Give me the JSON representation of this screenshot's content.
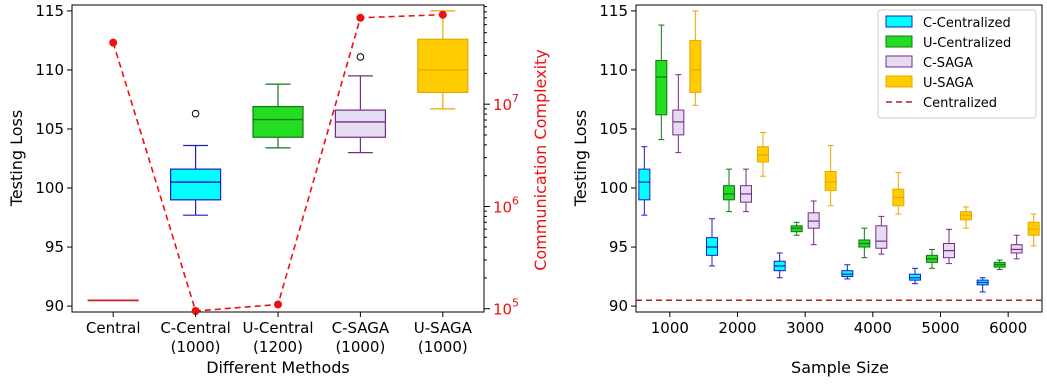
{
  "chart_data": [
    {
      "type": "box",
      "xlabel": "Different Methods",
      "ylabel": "Testing Loss",
      "y2label": "Communication Complexity",
      "ylim": [
        89.5,
        115.5
      ],
      "yticks": [
        90,
        95,
        100,
        105,
        110,
        115
      ],
      "y2scale": "log",
      "y2ticks": [
        {
          "value": 100000,
          "label": "10",
          "exp": "5"
        },
        {
          "value": 1000000,
          "label": "10",
          "exp": "6"
        },
        {
          "value": 10000000,
          "label": "10",
          "exp": "7"
        }
      ],
      "categories": [
        {
          "line1": "Central",
          "line2": ""
        },
        {
          "line1": "C-Central",
          "line2": "(1000)"
        },
        {
          "line1": "U-Central",
          "line2": "(1200)"
        },
        {
          "line1": "C-SAGA",
          "line2": "(1000)"
        },
        {
          "line1": "U-SAGA",
          "line2": "(1000)"
        }
      ],
      "boxes": [
        {
          "min": 90.5,
          "q1": 90.5,
          "median": 90.5,
          "q3": 90.5,
          "max": 90.5,
          "fliers": [],
          "color": "#ff9999",
          "edge": "#cc2222"
        },
        {
          "min": 97.7,
          "q1": 99.0,
          "median": 100.5,
          "q3": 101.6,
          "max": 103.6,
          "fliers": [
            106.3
          ],
          "color": "#00ffff",
          "edge": "#1c1cc8"
        },
        {
          "min": 103.4,
          "q1": 104.3,
          "median": 105.8,
          "q3": 106.9,
          "max": 108.8,
          "fliers": [],
          "color": "#22dd22",
          "edge": "#117711"
        },
        {
          "min": 103.0,
          "q1": 104.3,
          "median": 105.6,
          "q3": 106.6,
          "max": 109.5,
          "fliers": [
            111.1
          ],
          "color": "#e6dcf2",
          "edge": "#7a2a8a"
        },
        {
          "min": 106.7,
          "q1": 108.1,
          "median": 110.0,
          "q3": 112.6,
          "max": 115.0,
          "fliers": [],
          "color": "#ffcc00",
          "edge": "#e8a800"
        }
      ],
      "complexity_line": {
        "color": "#ee1111",
        "values": [
          40000000,
          95000,
          110000,
          70000000,
          75000000
        ]
      }
    },
    {
      "type": "box",
      "xlabel": "Sample Size",
      "ylabel": "Testing Loss",
      "ylim": [
        89.5,
        115.5
      ],
      "yticks": [
        90,
        95,
        100,
        105,
        110,
        115
      ],
      "categories": [
        "1000",
        "2000",
        "3000",
        "4000",
        "5000",
        "6000"
      ],
      "reference_line": {
        "name": "Centralized",
        "value": 90.5,
        "color": "#b22222"
      },
      "legend_position": "top-right",
      "series": [
        {
          "name": "C-Centralized",
          "color": "#00ffff",
          "edge": "#1c1cc8",
          "boxes": [
            {
              "min": 97.7,
              "q1": 99.0,
              "median": 100.5,
              "q3": 101.6,
              "max": 103.5
            },
            {
              "min": 93.4,
              "q1": 94.3,
              "median": 95.0,
              "q3": 95.8,
              "max": 97.4
            },
            {
              "min": 92.4,
              "q1": 93.0,
              "median": 93.4,
              "q3": 93.8,
              "max": 94.5
            },
            {
              "min": 92.3,
              "q1": 92.5,
              "median": 92.7,
              "q3": 93.0,
              "max": 93.5
            },
            {
              "min": 91.9,
              "q1": 92.2,
              "median": 92.4,
              "q3": 92.7,
              "max": 93.2
            },
            {
              "min": 91.2,
              "q1": 91.8,
              "median": 92.0,
              "q3": 92.2,
              "max": 92.4
            }
          ]
        },
        {
          "name": "U-Centralized",
          "color": "#22dd22",
          "edge": "#117711",
          "boxes": [
            {
              "min": 104.1,
              "q1": 106.2,
              "median": 109.4,
              "q3": 110.8,
              "max": 113.8
            },
            {
              "min": 98.0,
              "q1": 99.0,
              "median": 99.5,
              "q3": 100.2,
              "max": 101.6
            },
            {
              "min": 96.0,
              "q1": 96.3,
              "median": 96.6,
              "q3": 96.8,
              "max": 97.1
            },
            {
              "min": 94.1,
              "q1": 95.0,
              "median": 95.3,
              "q3": 95.6,
              "max": 96.6
            },
            {
              "min": 93.2,
              "q1": 93.7,
              "median": 94.0,
              "q3": 94.3,
              "max": 94.8
            },
            {
              "min": 93.1,
              "q1": 93.3,
              "median": 93.5,
              "q3": 93.7,
              "max": 93.9
            }
          ]
        },
        {
          "name": "C-SAGA",
          "color": "#e6dcf2",
          "edge": "#7a2a8a",
          "boxes": [
            {
              "min": 103.0,
              "q1": 104.5,
              "median": 105.6,
              "q3": 106.6,
              "max": 109.6
            },
            {
              "min": 98.0,
              "q1": 98.8,
              "median": 99.5,
              "q3": 100.2,
              "max": 101.6
            },
            {
              "min": 95.2,
              "q1": 96.6,
              "median": 97.2,
              "q3": 97.9,
              "max": 98.9
            },
            {
              "min": 94.4,
              "q1": 94.9,
              "median": 95.5,
              "q3": 96.8,
              "max": 97.6
            },
            {
              "min": 93.6,
              "q1": 94.1,
              "median": 94.7,
              "q3": 95.3,
              "max": 96.5
            },
            {
              "min": 94.0,
              "q1": 94.5,
              "median": 94.8,
              "q3": 95.2,
              "max": 96.0
            }
          ]
        },
        {
          "name": "U-SAGA",
          "color": "#ffcc00",
          "edge": "#e8a800",
          "boxes": [
            {
              "min": 107.0,
              "q1": 108.1,
              "median": 110.0,
              "q3": 112.5,
              "max": 115.0
            },
            {
              "min": 101.0,
              "q1": 102.2,
              "median": 102.8,
              "q3": 103.5,
              "max": 104.7
            },
            {
              "min": 98.5,
              "q1": 99.8,
              "median": 100.5,
              "q3": 101.4,
              "max": 103.6
            },
            {
              "min": 97.8,
              "q1": 98.5,
              "median": 99.2,
              "q3": 99.9,
              "max": 101.3
            },
            {
              "min": 96.6,
              "q1": 97.3,
              "median": 97.7,
              "q3": 98.0,
              "max": 98.4
            },
            {
              "min": 95.1,
              "q1": 96.0,
              "median": 96.5,
              "q3": 97.1,
              "max": 97.8
            }
          ]
        }
      ]
    }
  ]
}
